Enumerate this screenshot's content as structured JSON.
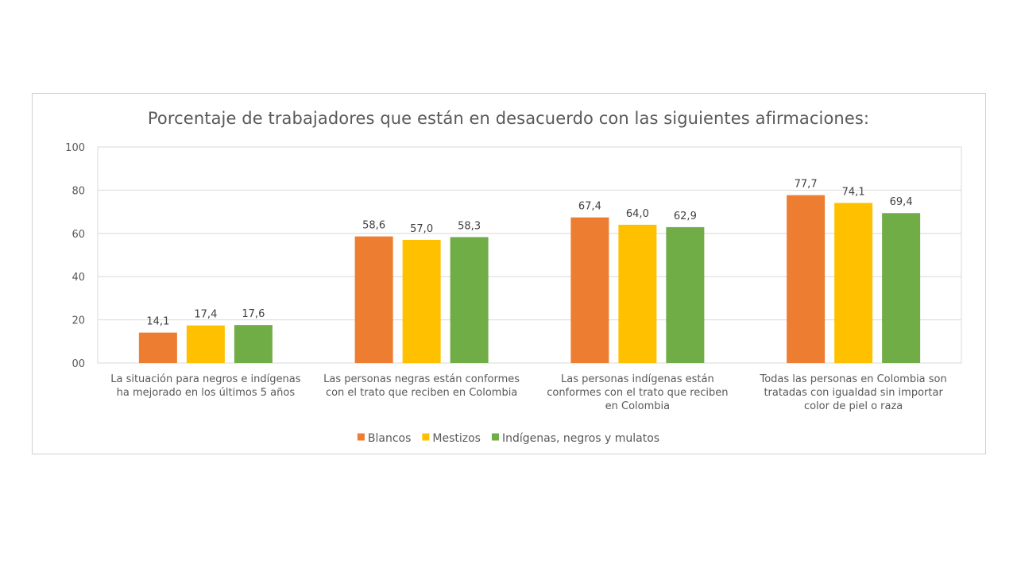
{
  "chart_data": {
    "type": "bar",
    "title": "Porcentaje de trabajadores que están en desacuerdo con las siguientes afirmaciones:",
    "ylim": [
      0,
      100
    ],
    "yticks": [
      "00",
      "20",
      "40",
      "60",
      "80",
      "100"
    ],
    "ytick_values": [
      0,
      20,
      40,
      60,
      80,
      100
    ],
    "grid": true,
    "legend_position": "bottom",
    "categories": [
      [
        "La situación para negros e indígenas",
        "ha mejorado en los últimos 5 años"
      ],
      [
        "Las personas negras están conformes",
        "con el trato que reciben en Colombia"
      ],
      [
        "Las personas indígenas están",
        "conformes con el trato que reciben",
        "en Colombia"
      ],
      [
        "Todas las personas en Colombia son",
        "tratadas con igualdad sin importar",
        "color de piel o raza"
      ]
    ],
    "series": [
      {
        "name": "Blancos",
        "color": "#ed7d31",
        "values": [
          14.1,
          58.6,
          67.4,
          77.7
        ],
        "labels": [
          "14,1",
          "58,6",
          "67,4",
          "77,7"
        ]
      },
      {
        "name": "Mestizos",
        "color": "#ffc000",
        "values": [
          17.4,
          57.0,
          64.0,
          74.1
        ],
        "labels": [
          "17,4",
          "57,0",
          "64,0",
          "74,1"
        ]
      },
      {
        "name": "Indígenas, negros y mulatos",
        "color": "#70ad47",
        "values": [
          17.6,
          58.3,
          62.9,
          69.4
        ],
        "labels": [
          "17,6",
          "58,3",
          "62,9",
          "69,4"
        ]
      }
    ]
  }
}
